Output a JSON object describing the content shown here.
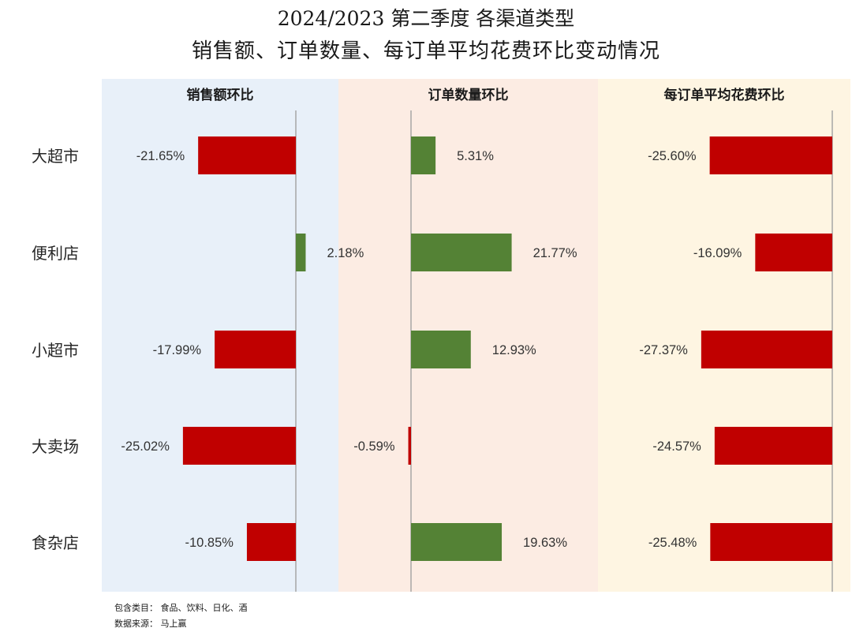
{
  "title_line1": "2024/2023 第二季度 各渠道类型",
  "title_line2": "销售额、订单数量、每订单平均花费环比变动情况",
  "colors": {
    "negative": "#c00000",
    "positive": "#548235",
    "panel_bg": [
      "#e8f0f9",
      "#fcece3",
      "#fef5e2"
    ],
    "axis": "#a6a6a6"
  },
  "footnotes": {
    "categories_note": "包含类目： 食品、饮料、日化、酒",
    "source_note": "数据来源： 马上赢"
  },
  "chart_data": {
    "type": "bar",
    "orientation": "horizontal",
    "categories": [
      "大超市",
      "便利店",
      "小超市",
      "大卖场",
      "食杂店"
    ],
    "series": [
      {
        "name": "销售额环比",
        "values": [
          -21.65,
          2.18,
          -17.99,
          -25.02,
          -10.85
        ],
        "labels": [
          "-21.65%",
          "2.18%",
          "-17.99%",
          "-25.02%",
          "-10.85%"
        ]
      },
      {
        "name": "订单数量环比",
        "values": [
          5.31,
          21.77,
          12.93,
          -0.59,
          19.63
        ],
        "labels": [
          "5.31%",
          "21.77%",
          "12.93%",
          "-0.59%",
          "19.63%"
        ]
      },
      {
        "name": "每订单平均花费环比",
        "values": [
          -25.6,
          -16.09,
          -27.37,
          -24.57,
          -25.48
        ],
        "labels": [
          "-25.60%",
          "-16.09%",
          "-27.37%",
          "-24.57%",
          "-25.48%"
        ]
      }
    ],
    "legend": "none",
    "grid": false
  }
}
